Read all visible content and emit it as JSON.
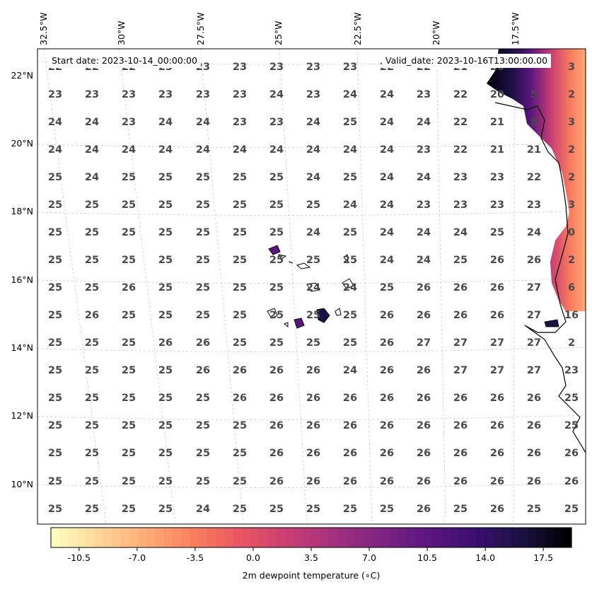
{
  "map": {
    "start_date": "Start date: 2023-10-14_00:00:00",
    "valid_date": "Valid_date: 2023-10-16T13:00:00.00",
    "lon_labels": [
      "32.5°W",
      "30°W",
      "27.5°W",
      "25°W",
      "22.5°W",
      "20°W",
      "17.5°W"
    ],
    "lat_labels": [
      "22°N",
      "20°N",
      "18°N",
      "16°N",
      "14°N",
      "12°N",
      "10°N"
    ],
    "grid_values": [
      [
        "22",
        "22",
        "22",
        "23",
        "23",
        "23",
        "23",
        "23",
        "23",
        "22",
        "22",
        "21",
        "20",
        "3"
      ],
      [
        "23",
        "23",
        "23",
        "23",
        "23",
        "23",
        "24",
        "23",
        "24",
        "24",
        "23",
        "22",
        "20",
        "5",
        "2"
      ],
      [
        "24",
        "24",
        "23",
        "24",
        "24",
        "23",
        "23",
        "24",
        "25",
        "24",
        "24",
        "22",
        "21",
        "8",
        "3"
      ],
      [
        "24",
        "24",
        "24",
        "24",
        "24",
        "24",
        "24",
        "24",
        "24",
        "24",
        "23",
        "22",
        "21",
        "21",
        "2"
      ],
      [
        "25",
        "24",
        "25",
        "25",
        "25",
        "25",
        "25",
        "24",
        "25",
        "24",
        "24",
        "23",
        "23",
        "22",
        "2"
      ],
      [
        "25",
        "25",
        "25",
        "25",
        "25",
        "25",
        "25",
        "25",
        "24",
        "24",
        "23",
        "23",
        "23",
        "23",
        "3"
      ],
      [
        "25",
        "25",
        "25",
        "25",
        "25",
        "25",
        "25",
        "24",
        "25",
        "24",
        "24",
        "24",
        "25",
        "24",
        "0"
      ],
      [
        "25",
        "25",
        "25",
        "25",
        "25",
        "25",
        "25",
        "25",
        "25",
        "24",
        "24",
        "25",
        "26",
        "26",
        "2"
      ],
      [
        "25",
        "25",
        "26",
        "25",
        "25",
        "25",
        "25",
        "24",
        "24",
        "25",
        "26",
        "26",
        "26",
        "27",
        "6"
      ],
      [
        "25",
        "26",
        "25",
        "25",
        "25",
        "25",
        "25",
        "25",
        "25",
        "26",
        "26",
        "26",
        "26",
        "27",
        "16"
      ],
      [
        "25",
        "25",
        "25",
        "26",
        "26",
        "25",
        "25",
        "25",
        "25",
        "26",
        "27",
        "27",
        "27",
        "27",
        "2"
      ],
      [
        "25",
        "25",
        "25",
        "25",
        "26",
        "26",
        "26",
        "26",
        "24",
        "26",
        "26",
        "27",
        "27",
        "27",
        "23"
      ],
      [
        "25",
        "25",
        "25",
        "25",
        "25",
        "26",
        "26",
        "26",
        "26",
        "26",
        "26",
        "26",
        "26",
        "26",
        "25"
      ],
      [
        "25",
        "25",
        "25",
        "25",
        "25",
        "25",
        "26",
        "26",
        "26",
        "26",
        "26",
        "26",
        "26",
        "26",
        "25"
      ],
      [
        "25",
        "25",
        "25",
        "25",
        "25",
        "25",
        "26",
        "26",
        "26",
        "26",
        "26",
        "26",
        "26",
        "26",
        "26"
      ],
      [
        "25",
        "25",
        "25",
        "25",
        "25",
        "25",
        "26",
        "26",
        "26",
        "26",
        "26",
        "26",
        "26",
        "26",
        "26"
      ],
      [
        "25",
        "25",
        "25",
        "25",
        "24",
        "25",
        "25",
        "25",
        "25",
        "25",
        "26",
        "25",
        "26",
        "25",
        "25"
      ]
    ],
    "colors": {
      "colormap": [
        "#fcfdbf",
        "#fed395",
        "#fea973",
        "#fa7d5e",
        "#e95462",
        "#c83e73",
        "#a3307e",
        "#7e2482",
        "#5c167f",
        "#3b0f70",
        "#1c1044",
        "#000004"
      ],
      "contour_land": "#5a1a7a"
    }
  },
  "colorbar": {
    "title": "2m dewpoint temperature (∘C)",
    "ticks": [
      "-10.5",
      "-7.0",
      "-3.5",
      "0.0",
      "3.5",
      "7.0",
      "10.5",
      "14.0",
      "17.5"
    ],
    "range": [
      -12.2,
      19.2
    ]
  }
}
